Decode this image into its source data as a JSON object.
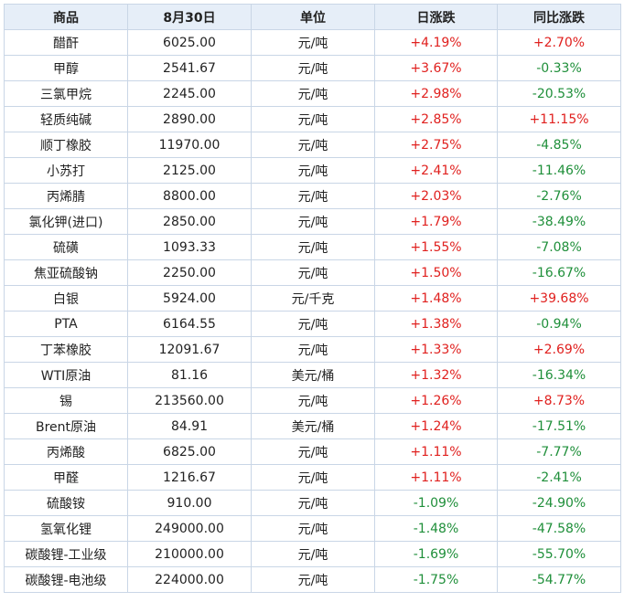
{
  "headers": [
    "商品",
    "8月30日",
    "单位",
    "日涨跌",
    "同比涨跌"
  ],
  "colors": {
    "up": "#e0201e",
    "down": "#1f8f3a",
    "header_bg": "#e6eef8",
    "border": "#c9d6e6"
  },
  "rows": [
    {
      "name": "醋酐",
      "price": "6025.00",
      "unit": "元/吨",
      "daily": "+4.19%",
      "yoy": "+2.70%"
    },
    {
      "name": "甲醇",
      "price": "2541.67",
      "unit": "元/吨",
      "daily": "+3.67%",
      "yoy": "-0.33%"
    },
    {
      "name": "三氯甲烷",
      "price": "2245.00",
      "unit": "元/吨",
      "daily": "+2.98%",
      "yoy": "-20.53%"
    },
    {
      "name": "轻质纯碱",
      "price": "2890.00",
      "unit": "元/吨",
      "daily": "+2.85%",
      "yoy": "+11.15%"
    },
    {
      "name": "顺丁橡胶",
      "price": "11970.00",
      "unit": "元/吨",
      "daily": "+2.75%",
      "yoy": "-4.85%"
    },
    {
      "name": "小苏打",
      "price": "2125.00",
      "unit": "元/吨",
      "daily": "+2.41%",
      "yoy": "-11.46%"
    },
    {
      "name": "丙烯腈",
      "price": "8800.00",
      "unit": "元/吨",
      "daily": "+2.03%",
      "yoy": "-2.76%"
    },
    {
      "name": "氯化钾(进口)",
      "price": "2850.00",
      "unit": "元/吨",
      "daily": "+1.79%",
      "yoy": "-38.49%"
    },
    {
      "name": "硫磺",
      "price": "1093.33",
      "unit": "元/吨",
      "daily": "+1.55%",
      "yoy": "-7.08%"
    },
    {
      "name": "焦亚硫酸钠",
      "price": "2250.00",
      "unit": "元/吨",
      "daily": "+1.50%",
      "yoy": "-16.67%"
    },
    {
      "name": "白银",
      "price": "5924.00",
      "unit": "元/千克",
      "daily": "+1.48%",
      "yoy": "+39.68%"
    },
    {
      "name": "PTA",
      "price": "6164.55",
      "unit": "元/吨",
      "daily": "+1.38%",
      "yoy": "-0.94%"
    },
    {
      "name": "丁苯橡胶",
      "price": "12091.67",
      "unit": "元/吨",
      "daily": "+1.33%",
      "yoy": "+2.69%"
    },
    {
      "name": "WTI原油",
      "price": "81.16",
      "unit": "美元/桶",
      "daily": "+1.32%",
      "yoy": "-16.34%"
    },
    {
      "name": "锡",
      "price": "213560.00",
      "unit": "元/吨",
      "daily": "+1.26%",
      "yoy": "+8.73%"
    },
    {
      "name": "Brent原油",
      "price": "84.91",
      "unit": "美元/桶",
      "daily": "+1.24%",
      "yoy": "-17.51%"
    },
    {
      "name": "丙烯酸",
      "price": "6825.00",
      "unit": "元/吨",
      "daily": "+1.11%",
      "yoy": "-7.77%"
    },
    {
      "name": "甲醛",
      "price": "1216.67",
      "unit": "元/吨",
      "daily": "+1.11%",
      "yoy": "-2.41%"
    },
    {
      "name": "硫酸铵",
      "price": "910.00",
      "unit": "元/吨",
      "daily": "-1.09%",
      "yoy": "-24.90%"
    },
    {
      "name": "氢氧化锂",
      "price": "249000.00",
      "unit": "元/吨",
      "daily": "-1.48%",
      "yoy": "-47.58%"
    },
    {
      "name": "碳酸锂-工业级",
      "price": "210000.00",
      "unit": "元/吨",
      "daily": "-1.69%",
      "yoy": "-55.70%"
    },
    {
      "name": "碳酸锂-电池级",
      "price": "224000.00",
      "unit": "元/吨",
      "daily": "-1.75%",
      "yoy": "-54.77%"
    }
  ]
}
